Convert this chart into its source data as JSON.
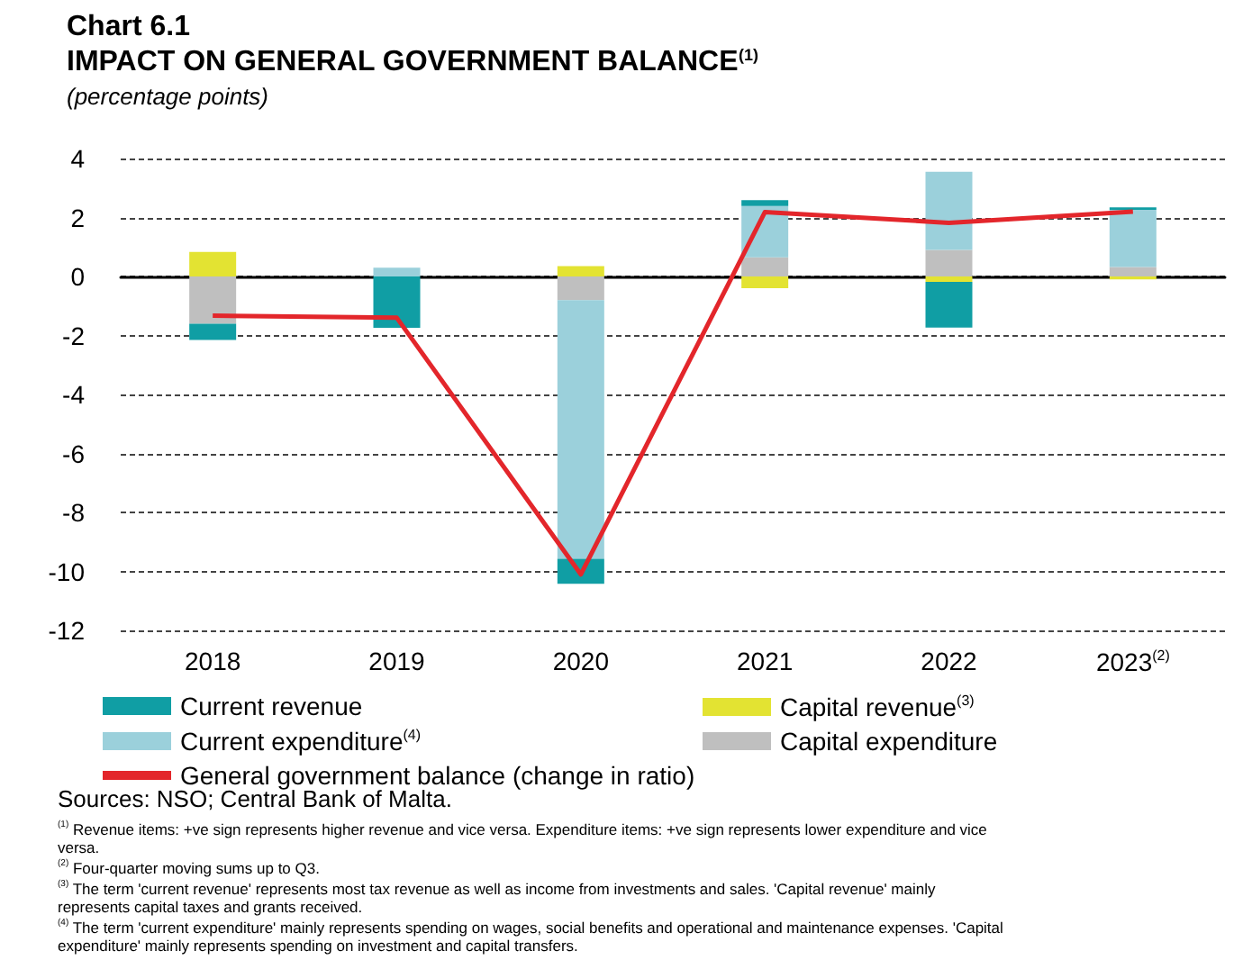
{
  "chart_data": {
    "type": "bar",
    "stacked": true,
    "title": "Chart 6.1",
    "subtitle": "IMPACT ON GENERAL GOVERNMENT BALANCE$^{(1)}$",
    "ylabel": "(percentage points)",
    "categories": [
      "2018",
      "2019",
      "2020",
      "2021",
      "2022",
      "2023$^{(2)}$"
    ],
    "series": [
      {
        "name": "Capital expenditure",
        "color": "#bfbfbf",
        "values": [
          -1.6,
          null,
          -0.8,
          0.65,
          0.9,
          0.32
        ]
      },
      {
        "name": "Capital revenue$^{(3)}$",
        "color": "#e3e332",
        "values": [
          0.83,
          null,
          0.35,
          -0.4,
          -0.18,
          -0.1
        ]
      },
      {
        "name": "Current expenditure$^{(4)}$",
        "color": "#9bd0db",
        "values": [
          null,
          0.3,
          -8.77,
          1.74,
          2.65,
          1.94
        ]
      },
      {
        "name": "Current revenue",
        "color": "#109ea4",
        "values": [
          -0.55,
          -1.74,
          -0.85,
          0.2,
          -1.55,
          0.08
        ]
      },
      {
        "name": "General government balance (change in ratio)",
        "type": "line",
        "color": "#e3262b",
        "values": [
          -1.33,
          -1.4,
          -10.1,
          2.18,
          1.82,
          2.2
        ]
      }
    ],
    "ylim": [
      -12,
      4
    ],
    "yticks": [
      -12,
      -10,
      -8,
      -6,
      -4,
      -2,
      0,
      2,
      4
    ],
    "grid": "y",
    "legend": "bottom",
    "annotations": [
      "Sources: NSO; Central Bank of Malta.",
      "$^{(1)}$ Revenue items: +ve sign represents higher revenue and vice versa. Expenditure items: +ve sign represents lower expenditure and vice versa.",
      "$^{(2)}$ Four-quarter moving sums up to Q3.",
      "$^{(3)}$ The term 'current revenue' represents most tax revenue as well as income from investments and sales. 'Capital revenue' mainly represents capital taxes and grants received.",
      "$^{(4)}$ The term 'current expenditure' mainly represents spending on wages, social benefits and operational and maintenance expenses. 'Capital expenditure' mainly represents spending on investment and capital transfers."
    ]
  }
}
